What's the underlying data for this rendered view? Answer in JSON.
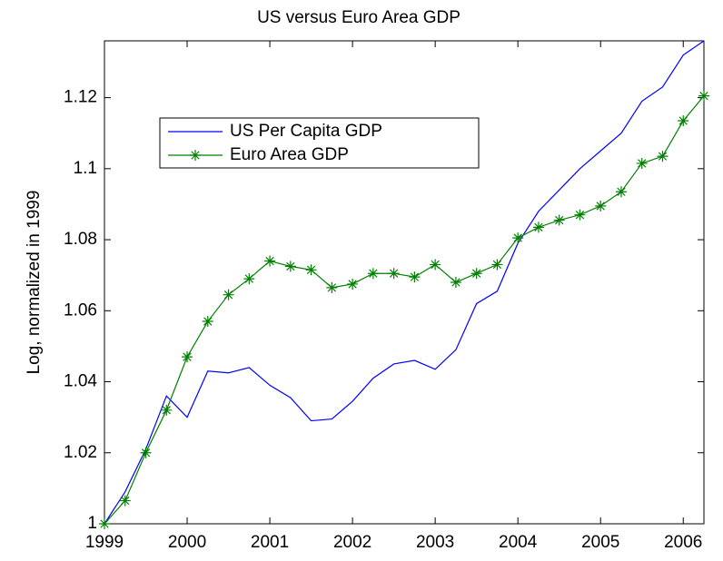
{
  "chart_data": {
    "type": "line",
    "title": "US versus Euro Area GDP",
    "y_label": "Log, normalized in 1999",
    "x": [
      1999,
      1999.25,
      1999.5,
      1999.75,
      2000,
      2000.25,
      2000.5,
      2000.75,
      2001,
      2001.25,
      2001.5,
      2001.75,
      2002,
      2002.25,
      2002.5,
      2002.75,
      2003,
      2003.25,
      2003.5,
      2003.75,
      2004,
      2004.25,
      2004.5,
      2004.75,
      2005,
      2005.25,
      2005.5,
      2005.75,
      2006,
      2006.25
    ],
    "series": [
      {
        "name": "US Per Capita GDP",
        "color": "#0000ff",
        "marker": "none",
        "values": [
          1.0,
          1.009,
          1.021,
          1.036,
          1.03,
          1.043,
          1.0425,
          1.044,
          1.039,
          1.0355,
          1.029,
          1.0295,
          1.0345,
          1.041,
          1.045,
          1.046,
          1.0435,
          1.049,
          1.062,
          1.0655,
          1.079,
          1.088,
          1.094,
          1.1,
          1.105,
          1.11,
          1.119,
          1.123,
          1.132,
          1.136
        ]
      },
      {
        "name": "Euro Area GDP",
        "color": "#008000",
        "marker": "asterisk",
        "values": [
          1.0,
          1.0065,
          1.02,
          1.032,
          1.047,
          1.057,
          1.0645,
          1.069,
          1.074,
          1.0725,
          1.0715,
          1.0665,
          1.0675,
          1.0705,
          1.0705,
          1.0695,
          1.073,
          1.068,
          1.0705,
          1.073,
          1.0805,
          1.0835,
          1.0855,
          1.087,
          1.0895,
          1.0935,
          1.1015,
          1.1035,
          1.1135,
          1.1205
        ]
      }
    ],
    "xlim": [
      1999,
      2006.25
    ],
    "xticks": [
      1999,
      2000,
      2001,
      2002,
      2003,
      2004,
      2005,
      2006
    ],
    "ylim": [
      1,
      1.136
    ],
    "yticks": [
      1,
      1.02,
      1.04,
      1.06,
      1.08,
      1.1,
      1.12
    ],
    "grid": false,
    "legend": "upper-left"
  }
}
